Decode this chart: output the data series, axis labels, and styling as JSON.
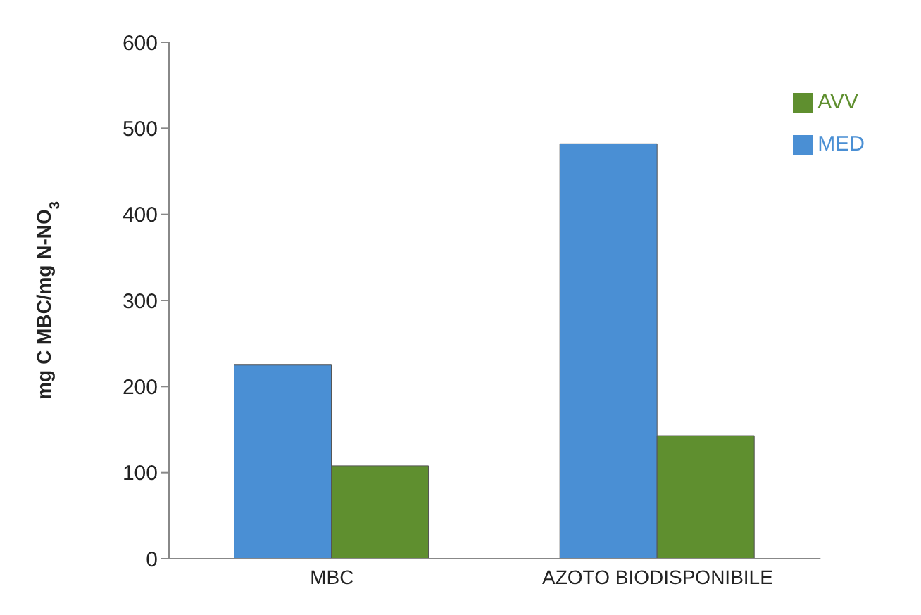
{
  "chart_data": {
    "type": "bar",
    "ylabel": "mg C MBC/mg N-NO$_{3}$",
    "categories": [
      "MBC",
      "AZOTO BIODISPONIBILE"
    ],
    "series": [
      {
        "name": "MED",
        "color": "#4a8fd4",
        "values": [
          225,
          482
        ]
      },
      {
        "name": "AVV",
        "color": "#5f8f2f",
        "values": [
          108,
          143
        ]
      }
    ],
    "ylim": [
      0,
      600
    ],
    "yticks": [
      0,
      100,
      200,
      300,
      400,
      500,
      600
    ],
    "grid": false,
    "legend": "top right"
  }
}
